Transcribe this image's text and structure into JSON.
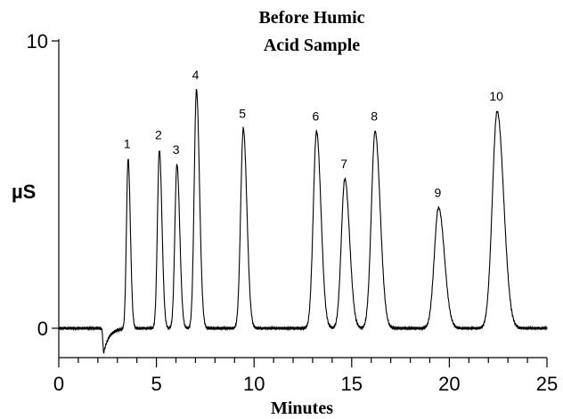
{
  "chart_data": {
    "type": "line",
    "title_lines": [
      "Before Humic",
      "Acid Sample"
    ],
    "xlabel": "Minutes",
    "ylabel": "µS",
    "xlim": [
      0,
      25
    ],
    "ylim": [
      -1,
      10
    ],
    "x_major_ticks": [
      0,
      5,
      10,
      15,
      20,
      25
    ],
    "x_minor_step": 1,
    "y_ticks": [
      0,
      10
    ],
    "grid": false,
    "baseline_dip": {
      "x": 2.3,
      "y": -0.85
    },
    "peaks": [
      {
        "label": "1",
        "x": 3.55,
        "y": 5.9
      },
      {
        "label": "2",
        "x": 5.15,
        "y": 6.2
      },
      {
        "label": "3",
        "x": 6.05,
        "y": 5.7
      },
      {
        "label": "4",
        "x": 7.05,
        "y": 8.3
      },
      {
        "label": "5",
        "x": 9.45,
        "y": 6.95
      },
      {
        "label": "6",
        "x": 13.2,
        "y": 6.85
      },
      {
        "label": "7",
        "x": 14.65,
        "y": 5.2
      },
      {
        "label": "8",
        "x": 16.2,
        "y": 6.85
      },
      {
        "label": "9",
        "x": 19.45,
        "y": 4.2
      },
      {
        "label": "10",
        "x": 22.45,
        "y": 7.55
      }
    ]
  }
}
